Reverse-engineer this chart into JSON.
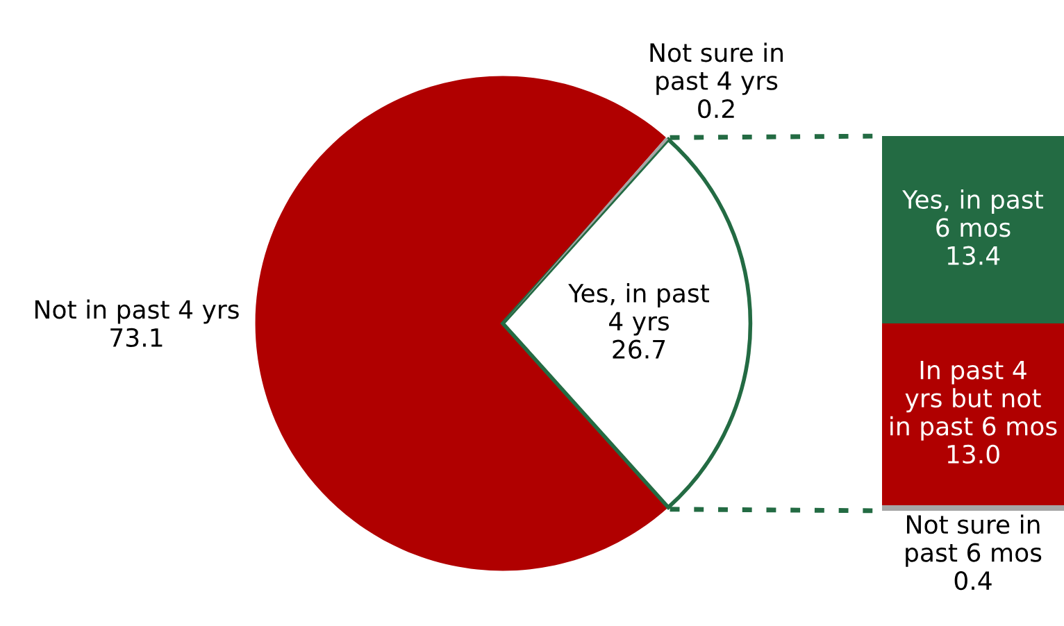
{
  "chart_data": [
    {
      "type": "pie",
      "categories": [
        "Not in past 4 yrs",
        "Yes, in past\n4 yrs",
        "Not sure in\npast 4 yrs"
      ],
      "values": [
        73.1,
        26.7,
        0.2
      ],
      "colors": [
        "#b00000",
        "#ffffff",
        "#a6a6a6"
      ],
      "data_labels": true
    },
    {
      "type": "bar",
      "stacked": true,
      "categories": [
        null
      ],
      "tick_labels": false,
      "series": [
        {
          "name": "Not sure in\npast 6 mos",
          "color": "#a6a6a6",
          "values": [
            0.4
          ],
          "value_labels": [
            "0.4"
          ]
        },
        {
          "name": "In past 4\nyrs but not\nin past 6 mos",
          "color": "#b00000",
          "values": [
            13.0
          ],
          "value_labels": [
            "13.0"
          ]
        },
        {
          "name": "Yes, in past\n6 mos",
          "color": "#236b43",
          "values": [
            13.4
          ],
          "value_labels": [
            "13.4"
          ]
        }
      ]
    }
  ]
}
